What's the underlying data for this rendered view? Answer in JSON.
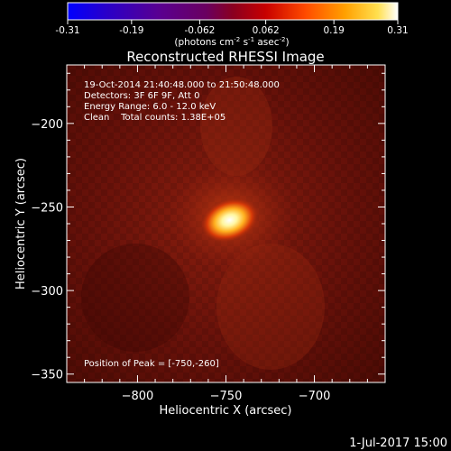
{
  "colorbar": {
    "ticks": [
      "-0.31",
      "-0.19",
      "-0.062",
      "0.062",
      "0.19",
      "0.31"
    ],
    "unit_main": "(photons cm",
    "unit_exp1": "-2",
    "unit_s": " s",
    "unit_exp2": "-1",
    "unit_asec": " asec",
    "unit_exp3": "-2",
    "unit_close": ")"
  },
  "chart_data": {
    "type": "heatmap",
    "title": "Reconstructed RHESSI Image",
    "xlabel": "Heliocentric X (arcsec)",
    "ylabel": "Heliocentric Y (arcsec)",
    "xlim": [
      -840,
      -660
    ],
    "ylim": [
      -355,
      -165
    ],
    "xticks": [
      -800,
      -750,
      -700
    ],
    "yticks": [
      -200,
      -250,
      -300,
      -350
    ],
    "xtick_labels": [
      "−800",
      "−750",
      "−700"
    ],
    "ytick_labels": [
      "−200",
      "−250",
      "−300",
      "−350"
    ],
    "color_range": [
      -0.31,
      0.31
    ],
    "colormap": "black-red-orange-yellow-white",
    "peak": {
      "x": -750,
      "y": -260
    },
    "info_lines": [
      "19-Oct-2014 21:40:48.000 to 21:50:48.000",
      "Detectors: 3F 6F 9F, Att 0",
      "Energy Range: 6.0 - 12.0 keV",
      "Clean    Total counts: 1.38E+05"
    ],
    "peak_label": "Position of Peak = [-750,-260]"
  },
  "footer": {
    "date": "1-Jul-2017 15:00"
  }
}
